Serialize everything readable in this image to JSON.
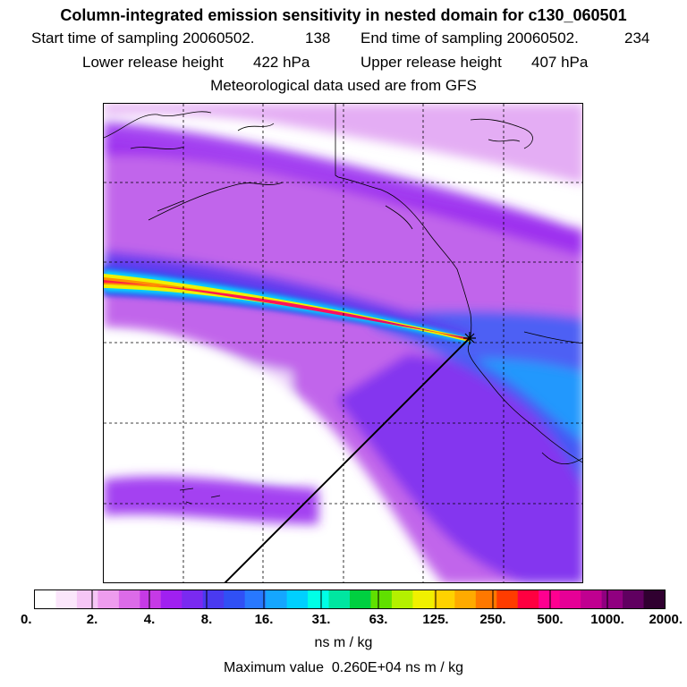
{
  "header": {
    "title": "Column-integrated emission sensitivity in nested domain for c130_060501",
    "start_label": "Start time of sampling 20060502.",
    "start_value": "138",
    "end_label": "End time of sampling 20060502.",
    "end_value": "234",
    "lower_label": "Lower release height",
    "lower_value": "422 hPa",
    "upper_label": "Upper release height",
    "upper_value": "407 hPa",
    "met_line": "Meteorological data used are from GFS"
  },
  "legend": {
    "tick_labels": [
      "0.",
      "2.",
      "4.",
      "8.",
      "16.",
      "31.",
      "63.",
      "125.",
      "250.",
      "500.",
      "1000.",
      "2000."
    ],
    "units": "ns m / kg",
    "max_label": "Maximum value",
    "max_value": "0.260E+04 ns m / kg",
    "colors": [
      "#ffffff",
      "#fbe6fb",
      "#f6c6f6",
      "#ee9cee",
      "#dc6be8",
      "#c63ae6",
      "#a020f0",
      "#7a2af0",
      "#4a3af0",
      "#3050f5",
      "#2878ff",
      "#15a6ff",
      "#00d0ff",
      "#00ffe6",
      "#00e6a0",
      "#00d040",
      "#60e000",
      "#b4f000",
      "#f0f000",
      "#ffd200",
      "#ffaa00",
      "#ff7800",
      "#ff3c00",
      "#ff0040",
      "#ff0090",
      "#e60096",
      "#c00090",
      "#900080",
      "#600060",
      "#300030"
    ]
  }
}
